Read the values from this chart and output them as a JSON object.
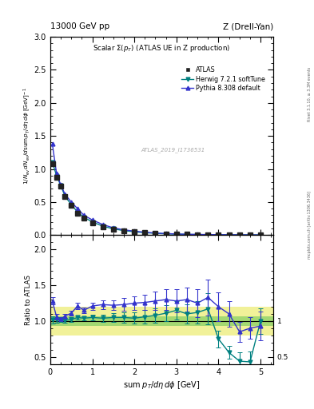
{
  "title_top_left": "13000 GeV pp",
  "title_top_right": "Z (Drell-Yan)",
  "plot_title": "Scalar Σ(p_{T}) (ATLAS UE in Z production)",
  "watermark": "ATLAS_2019_I1736531",
  "right_label_top": "Rivet 3.1.10, ≥ 3.3M events",
  "right_label_bottom": "mcplots.cern.ch [arXiv:1306.3436]",
  "data_x": [
    0.05,
    0.15,
    0.25,
    0.35,
    0.5,
    0.65,
    0.8,
    1.0,
    1.25,
    1.5,
    1.75,
    2.0,
    2.25,
    2.5,
    2.75,
    3.0,
    3.25,
    3.5,
    3.75,
    4.0,
    4.25,
    4.5,
    4.75,
    5.0
  ],
  "data_y": [
    1.08,
    0.88,
    0.74,
    0.58,
    0.45,
    0.33,
    0.26,
    0.19,
    0.13,
    0.09,
    0.065,
    0.048,
    0.035,
    0.025,
    0.018,
    0.013,
    0.01,
    0.008,
    0.006,
    0.005,
    0.004,
    0.003,
    0.002,
    0.002
  ],
  "data_yerr": [
    0.02,
    0.015,
    0.012,
    0.01,
    0.008,
    0.007,
    0.006,
    0.005,
    0.004,
    0.003,
    0.003,
    0.002,
    0.002,
    0.002,
    0.001,
    0.001,
    0.001,
    0.001,
    0.001,
    0.001,
    0.001,
    0.001,
    0.001,
    0.001
  ],
  "herwig_x": [
    0.05,
    0.15,
    0.25,
    0.35,
    0.5,
    0.65,
    0.8,
    1.0,
    1.25,
    1.5,
    1.75,
    2.0,
    2.25,
    2.5,
    2.75,
    3.0,
    3.25,
    3.5,
    3.75,
    4.0,
    4.25,
    4.5,
    4.75,
    5.0
  ],
  "herwig_y": [
    1.1,
    0.9,
    0.75,
    0.59,
    0.46,
    0.35,
    0.27,
    0.2,
    0.135,
    0.095,
    0.068,
    0.05,
    0.037,
    0.027,
    0.02,
    0.015,
    0.011,
    0.009,
    0.007,
    0.006,
    0.005,
    0.004,
    0.003,
    0.002
  ],
  "pythia_x": [
    0.05,
    0.15,
    0.25,
    0.35,
    0.5,
    0.65,
    0.8,
    1.0,
    1.25,
    1.5,
    1.75,
    2.0,
    2.25,
    2.5,
    2.75,
    3.0,
    3.25,
    3.5,
    3.75,
    4.0,
    4.25,
    4.5,
    4.75,
    5.0
  ],
  "pythia_y": [
    1.38,
    0.93,
    0.76,
    0.62,
    0.5,
    0.4,
    0.3,
    0.23,
    0.16,
    0.11,
    0.08,
    0.06,
    0.044,
    0.032,
    0.024,
    0.017,
    0.013,
    0.01,
    0.008,
    0.006,
    0.005,
    0.004,
    0.003,
    0.002
  ],
  "ratio_herwig_y": [
    1.02,
    1.02,
    1.02,
    1.01,
    1.02,
    1.05,
    1.04,
    1.05,
    1.04,
    1.05,
    1.05,
    1.04,
    1.06,
    1.08,
    1.11,
    1.15,
    1.1,
    1.12,
    1.17,
    0.75,
    0.56,
    0.44,
    0.43,
    1.0
  ],
  "ratio_herwig_yerr": [
    0.05,
    0.04,
    0.03,
    0.03,
    0.03,
    0.03,
    0.03,
    0.04,
    0.05,
    0.06,
    0.07,
    0.08,
    0.09,
    0.1,
    0.11,
    0.13,
    0.13,
    0.16,
    0.22,
    0.12,
    0.09,
    0.12,
    0.14,
    0.18
  ],
  "ratio_pythia_y": [
    1.28,
    1.06,
    1.03,
    1.07,
    1.11,
    1.21,
    1.15,
    1.21,
    1.23,
    1.22,
    1.23,
    1.25,
    1.26,
    1.28,
    1.3,
    1.28,
    1.3,
    1.25,
    1.33,
    1.2,
    1.1,
    0.85,
    0.9,
    0.93
  ],
  "ratio_pythia_yerr": [
    0.05,
    0.04,
    0.03,
    0.03,
    0.03,
    0.04,
    0.04,
    0.05,
    0.06,
    0.07,
    0.09,
    0.1,
    0.11,
    0.13,
    0.15,
    0.16,
    0.17,
    0.2,
    0.25,
    0.2,
    0.18,
    0.14,
    0.15,
    0.2
  ],
  "band_green_low": 0.93,
  "band_green_high": 1.07,
  "band_yellow_low": 0.8,
  "band_yellow_high": 1.2,
  "xlim": [
    0,
    5.3
  ],
  "ylim_main": [
    0,
    3.0
  ],
  "ylim_ratio": [
    0.4,
    2.2
  ],
  "color_data": "#222222",
  "color_herwig": "#008080",
  "color_pythia": "#3333cc",
  "color_green_band": "#44bb44",
  "color_yellow_band": "#dddd00",
  "alpha_green": 0.45,
  "alpha_yellow": 0.4
}
